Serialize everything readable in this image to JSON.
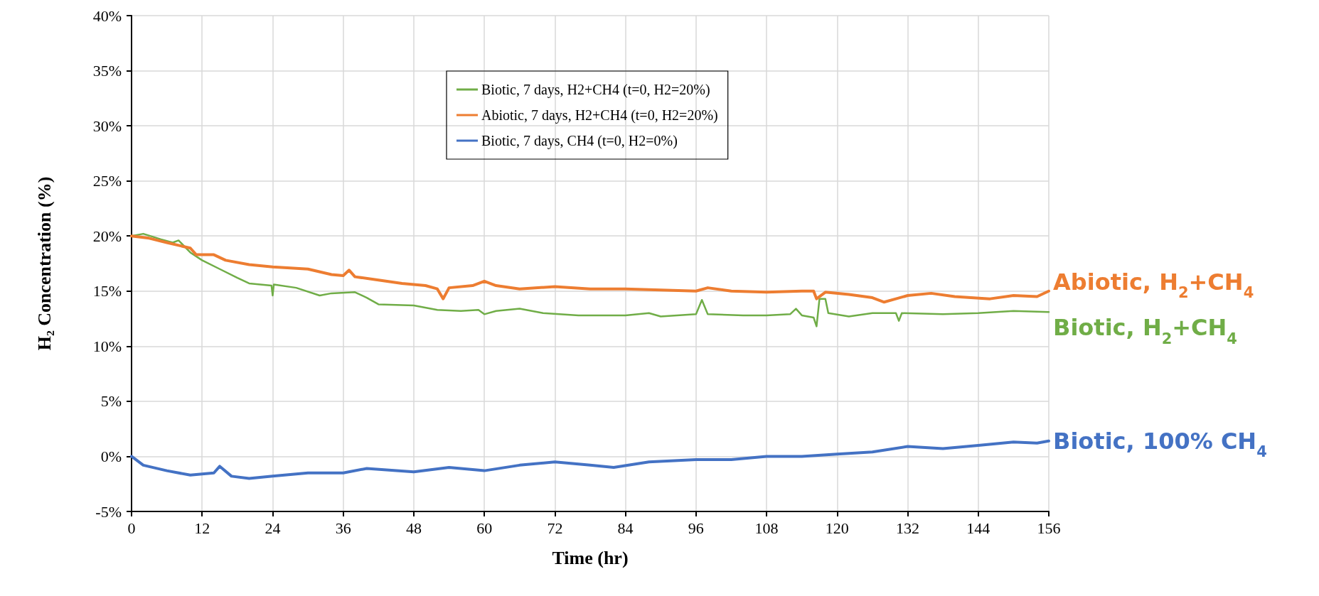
{
  "chart_data": {
    "type": "line",
    "xlabel": "Time (hr)",
    "ylabel": "H₂ Concentration (%)",
    "xlim": [
      0,
      156
    ],
    "xticks": [
      0,
      12,
      24,
      36,
      48,
      60,
      72,
      84,
      96,
      108,
      120,
      132,
      144,
      156
    ],
    "ylim": [
      -5,
      40
    ],
    "yticks": [
      {
        "value": -5,
        "label": "-5%"
      },
      {
        "value": 0,
        "label": "0%"
      },
      {
        "value": 5,
        "label": "5%"
      },
      {
        "value": 10,
        "label": "10%"
      },
      {
        "value": 15,
        "label": "15%"
      },
      {
        "value": 20,
        "label": "20%"
      },
      {
        "value": 25,
        "label": "25%"
      },
      {
        "value": 30,
        "label": "30%"
      },
      {
        "value": 35,
        "label": "35%"
      },
      {
        "value": 40,
        "label": "40%"
      }
    ],
    "grid": true,
    "legend": "top",
    "marker": "none",
    "line_style": "solid",
    "series": [
      {
        "name": "Biotic, 7 days, H2+CH4 (t=0, H2=20%)",
        "color": "#70ad47",
        "x": [
          0,
          2,
          5,
          7,
          8,
          10,
          12,
          15,
          18,
          20,
          23.8,
          24,
          24.2,
          28,
          32,
          34,
          38,
          40,
          42,
          48,
          52,
          56,
          59,
          60,
          62,
          66,
          70,
          76,
          84,
          88,
          90,
          96,
          97,
          98,
          104,
          108,
          112,
          113,
          114,
          116,
          116.5,
          117,
          118,
          118.5,
          122,
          126,
          130,
          130.5,
          131,
          138,
          144,
          150,
          156
        ],
        "values": [
          20,
          20.2,
          19.7,
          19.4,
          19.6,
          18.5,
          17.8,
          17,
          16.2,
          15.7,
          15.5,
          14.6,
          15.6,
          15.3,
          14.6,
          14.8,
          14.9,
          14.4,
          13.8,
          13.7,
          13.3,
          13.2,
          13.3,
          12.9,
          13.2,
          13.4,
          13,
          12.8,
          12.8,
          13,
          12.7,
          12.9,
          14.2,
          12.9,
          12.8,
          12.8,
          12.9,
          13.4,
          12.8,
          12.6,
          11.8,
          14.3,
          14.3,
          13,
          12.7,
          13,
          13,
          12.3,
          13,
          12.9,
          13,
          13.2,
          13.1
        ]
      },
      {
        "name": "Abiotic, 7 days, H2+CH4 (t=0, H2=20%)",
        "color": "#ed7d31",
        "x": [
          0,
          3,
          6,
          10,
          11,
          14,
          16,
          20,
          24,
          30,
          34,
          36,
          37,
          38,
          42,
          46,
          50,
          52,
          53,
          54,
          58,
          60,
          62,
          66,
          72,
          78,
          84,
          90,
          96,
          98,
          102,
          108,
          114,
          116,
          116.5,
          118,
          122,
          126,
          128,
          130,
          132,
          136,
          140,
          146,
          150,
          154,
          156
        ],
        "values": [
          20,
          19.8,
          19.4,
          18.9,
          18.3,
          18.3,
          17.8,
          17.4,
          17.2,
          17,
          16.5,
          16.4,
          16.9,
          16.3,
          16,
          15.7,
          15.5,
          15.2,
          14.3,
          15.3,
          15.5,
          15.9,
          15.5,
          15.2,
          15.4,
          15.2,
          15.2,
          15.1,
          15,
          15.3,
          15,
          14.9,
          15,
          15,
          14.3,
          14.9,
          14.7,
          14.4,
          14,
          14.3,
          14.6,
          14.8,
          14.5,
          14.3,
          14.6,
          14.5,
          15
        ]
      },
      {
        "name": "Biotic, 7 days, CH4 (t=0, H2=0%)",
        "color": "#4472c4",
        "x": [
          0,
          2,
          6,
          10,
          14,
          15,
          17,
          20,
          24,
          30,
          36,
          40,
          48,
          54,
          60,
          66,
          72,
          78,
          82,
          88,
          96,
          102,
          108,
          114,
          120,
          126,
          132,
          138,
          144,
          150,
          154,
          156
        ],
        "values": [
          0,
          -0.8,
          -1.3,
          -1.7,
          -1.5,
          -0.9,
          -1.8,
          -2,
          -1.8,
          -1.5,
          -1.5,
          -1.1,
          -1.4,
          -1,
          -1.3,
          -0.8,
          -0.5,
          -0.8,
          -1,
          -0.5,
          -0.3,
          -0.3,
          0,
          0,
          0.2,
          0.4,
          0.9,
          0.7,
          1,
          1.3,
          1.2,
          1.4
        ]
      }
    ],
    "annotations": [
      "Abiotic, H$_{2}$+CH$_{4}$",
      "Biotic, H$_{2}$+CH$_{4}$",
      "Biotic, 100% CH$_{4}$"
    ]
  }
}
